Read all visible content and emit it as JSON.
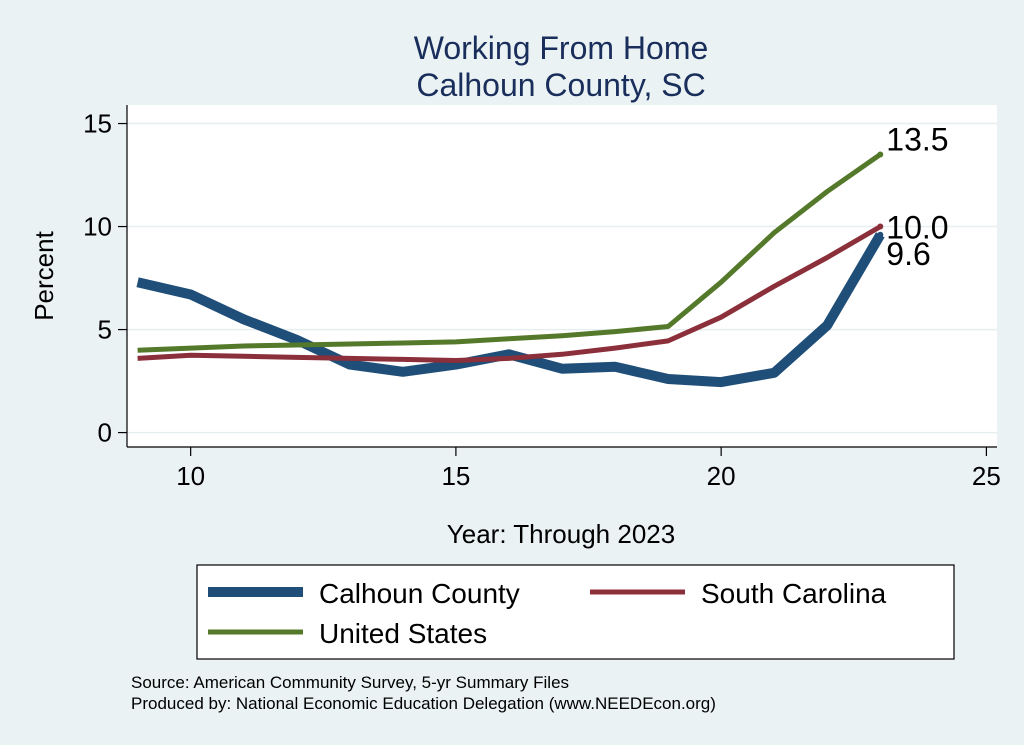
{
  "chart_data": {
    "type": "line",
    "title": "Working From Home",
    "subtitle": "Calhoun County, SC",
    "xlabel": "Year: Through 2023",
    "ylabel": "Percent",
    "xlim": [
      8.8,
      25.2
    ],
    "ylim": [
      -0.7,
      15.9
    ],
    "xticks": [
      10,
      15,
      20,
      25
    ],
    "yticks": [
      0,
      5,
      10,
      15
    ],
    "grid": true,
    "legend_position": "bottom",
    "series": [
      {
        "name": "Calhoun County",
        "color": "#1f4e79",
        "x": [
          9,
          10,
          11,
          12,
          13,
          14,
          15,
          16,
          17,
          18,
          19,
          20,
          21,
          22,
          23
        ],
        "y": [
          7.3,
          6.7,
          5.5,
          4.5,
          3.3,
          2.95,
          3.3,
          3.8,
          3.1,
          3.2,
          2.6,
          2.45,
          2.9,
          5.2,
          9.6
        ],
        "end_label": "9.6"
      },
      {
        "name": "South Carolina",
        "color": "#8b2f3a",
        "x": [
          9,
          10,
          11,
          12,
          13,
          14,
          15,
          16,
          17,
          18,
          19,
          20,
          21,
          22,
          23
        ],
        "y": [
          3.6,
          3.75,
          3.7,
          3.65,
          3.6,
          3.55,
          3.5,
          3.6,
          3.8,
          4.1,
          4.45,
          5.6,
          7.1,
          8.5,
          10.0
        ],
        "end_label": "10.0"
      },
      {
        "name": "United States",
        "color": "#55792a",
        "x": [
          9,
          10,
          11,
          12,
          13,
          14,
          15,
          16,
          17,
          18,
          19,
          20,
          21,
          22,
          23
        ],
        "y": [
          4.0,
          4.1,
          4.2,
          4.25,
          4.3,
          4.35,
          4.4,
          4.55,
          4.7,
          4.9,
          5.15,
          7.3,
          9.7,
          11.7,
          13.5
        ],
        "end_label": "13.5"
      }
    ],
    "notes": [
      "Source: American Community Survey, 5-yr Summary Files",
      "Produced by: National Economic Education Delegation (www.NEEDEcon.org)"
    ]
  }
}
